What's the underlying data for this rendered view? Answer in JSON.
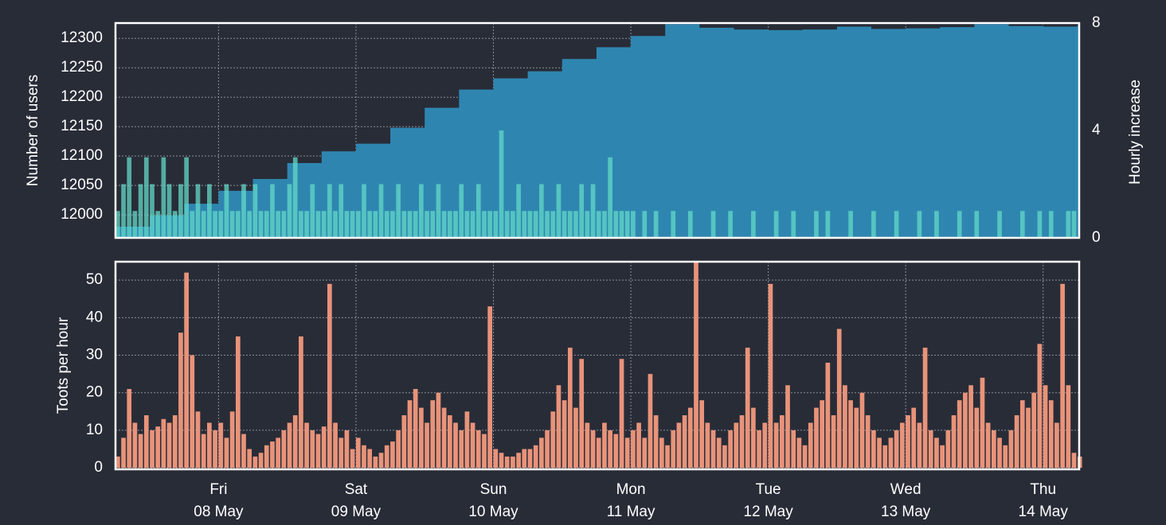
{
  "chart_data": [
    {
      "type": "combo",
      "ylabel": "Number of users",
      "y2label": "Hourly increase",
      "xlim": [
        -18,
        150.3
      ],
      "ylim": [
        11961,
        12326
      ],
      "yticks": [
        12000,
        12050,
        12100,
        12150,
        12200,
        12250,
        12300
      ],
      "y2lim": [
        0,
        8
      ],
      "y2ticks": [
        0,
        4,
        8
      ],
      "grid": true,
      "series": [
        {
          "name": "Number of users",
          "type": "area",
          "color": "#2e86b0",
          "label_color": "#7cc6ea",
          "x": [
            -18,
            -12,
            -6,
            0,
            6,
            12,
            18,
            24,
            30,
            36,
            42,
            48,
            54,
            60,
            66,
            72,
            78,
            84,
            90,
            96,
            102,
            108,
            114,
            120,
            126,
            132,
            138,
            144,
            150
          ],
          "values": [
            11980,
            11999,
            12019,
            12041,
            12061,
            12088,
            12108,
            12121,
            12148,
            12182,
            12213,
            12232,
            12244,
            12265,
            12285,
            12304,
            12324,
            12318,
            12315,
            12314,
            12315,
            12320,
            12316,
            12317,
            12319,
            12324,
            12321,
            12320,
            12323
          ]
        },
        {
          "name": "Hourly increase",
          "type": "bar",
          "axis": "y2",
          "color": "#63d8c8",
          "label_color": "#63d8c8",
          "x0": -18,
          "values": [
            1,
            2,
            3,
            1,
            2,
            3,
            2,
            1,
            3,
            2,
            1,
            2,
            3,
            1,
            2,
            1,
            2,
            1,
            1,
            2,
            1,
            1,
            2,
            1,
            2,
            1,
            1,
            2,
            1,
            1,
            2,
            3,
            1,
            1,
            2,
            1,
            1,
            2,
            1,
            2,
            1,
            1,
            1,
            2,
            1,
            1,
            2,
            1,
            1,
            2,
            1,
            1,
            1,
            2,
            1,
            1,
            2,
            1,
            1,
            1,
            2,
            1,
            1,
            2,
            1,
            1,
            1,
            4,
            1,
            1,
            2,
            1,
            1,
            1,
            2,
            1,
            1,
            2,
            1,
            1,
            1,
            2,
            1,
            2,
            1,
            1,
            3,
            1,
            1,
            1,
            1,
            0,
            1,
            0,
            1,
            0,
            0,
            1,
            0,
            0,
            1,
            0,
            0,
            0,
            1,
            0,
            0,
            1,
            0,
            0,
            0,
            1,
            0,
            0,
            0,
            1,
            0,
            0,
            1,
            0,
            0,
            0,
            1,
            0,
            1,
            0,
            0,
            0,
            1,
            0,
            0,
            0,
            1,
            0,
            0,
            0,
            1,
            0,
            0,
            0,
            1,
            0,
            0,
            1,
            0,
            0,
            0,
            1,
            0,
            0,
            1,
            0,
            0,
            0,
            1,
            0,
            0,
            0,
            1,
            0,
            0,
            1,
            0,
            1,
            0,
            0,
            1,
            1,
            0
          ]
        }
      ]
    },
    {
      "type": "bar",
      "ylabel": "Toots per hour",
      "xlim": [
        -18,
        150.3
      ],
      "xticks": [
        {
          "value": 0,
          "label": "Fri\n08 May"
        },
        {
          "value": 24,
          "label": "Sat\n09 May"
        },
        {
          "value": 48,
          "label": "Sun\n10 May"
        },
        {
          "value": 72,
          "label": "Mon\n11 May"
        },
        {
          "value": 96,
          "label": "Tue\n12 May"
        },
        {
          "value": 120,
          "label": "Wed\n13 May"
        },
        {
          "value": 144,
          "label": "Thu\n14 May"
        }
      ],
      "ylim": [
        -0.4,
        54.9
      ],
      "yticks": [
        0,
        10,
        20,
        30,
        40,
        50
      ],
      "grid": true,
      "series": [
        {
          "name": "Toots per hour",
          "color": "#e8937a",
          "label_color": "#e8937a",
          "x0": -18,
          "values": [
            3,
            8,
            21,
            12,
            9,
            14,
            10,
            11,
            13,
            12,
            14,
            36,
            52,
            30,
            15,
            9,
            12,
            10,
            12,
            8,
            15,
            35,
            9,
            5,
            3,
            4,
            6,
            7,
            8,
            10,
            12,
            14,
            35,
            12,
            10,
            9,
            11,
            49,
            12,
            8,
            10,
            5,
            8,
            6,
            5,
            3,
            4,
            6,
            7,
            10,
            14,
            18,
            21,
            16,
            12,
            18,
            20,
            16,
            14,
            12,
            10,
            15,
            12,
            10,
            9,
            43,
            5,
            4,
            3,
            3,
            4,
            5,
            5,
            6,
            8,
            10,
            15,
            22,
            18,
            32,
            16,
            29,
            12,
            10,
            8,
            12,
            10,
            9,
            29,
            8,
            10,
            12,
            8,
            25,
            14,
            8,
            6,
            10,
            12,
            14,
            16,
            55,
            18,
            12,
            10,
            8,
            6,
            10,
            12,
            14,
            32,
            16,
            10,
            12,
            49,
            12,
            14,
            22,
            10,
            8,
            6,
            12,
            16,
            18,
            28,
            14,
            37,
            22,
            18,
            16,
            20,
            14,
            10,
            8,
            6,
            8,
            10,
            12,
            14,
            16,
            12,
            32,
            10,
            8,
            6,
            10,
            14,
            18,
            20,
            22,
            16,
            24,
            12,
            10,
            8,
            6,
            10,
            14,
            18,
            16,
            20,
            33,
            22,
            18,
            12,
            49,
            22,
            4,
            3
          ]
        }
      ]
    }
  ]
}
